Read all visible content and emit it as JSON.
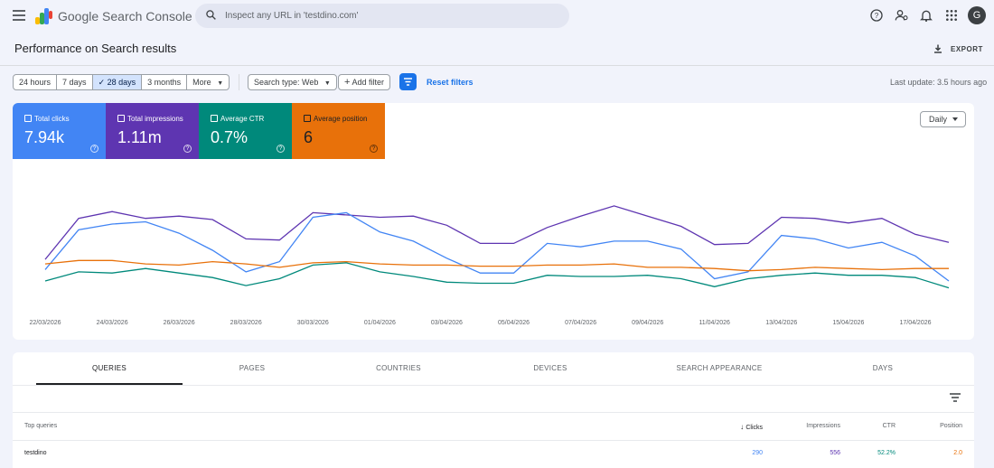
{
  "app": {
    "title": "Google Search Console"
  },
  "search": {
    "placeholder": "Inspect any URL in 'testdino.com'"
  },
  "user": {
    "avatar_letter": "G"
  },
  "page": {
    "title": "Performance on Search results",
    "export_label": "EXPORT"
  },
  "filters": {
    "ranges": [
      "24 hours",
      "7 days",
      "28 days",
      "3 months"
    ],
    "active_range": "28 days",
    "more_label": "More",
    "search_type": "Search type: Web",
    "add_filter": "Add filter",
    "reset": "Reset filters",
    "last_update": "Last update: 3.5 hours ago"
  },
  "metrics": [
    {
      "label": "Total clicks",
      "value": "7.94k",
      "color": "#4285f4"
    },
    {
      "label": "Total impressions",
      "value": "1.11m",
      "color": "#5e35b1"
    },
    {
      "label": "Average CTR",
      "value": "0.7%",
      "color": "#00897b"
    },
    {
      "label": "Average position",
      "value": "6",
      "color": "#e8710a"
    }
  ],
  "granularity": "Daily",
  "chart_data": {
    "type": "line",
    "x_tick_labels": [
      "22/03/2026",
      "24/03/2026",
      "26/03/2026",
      "28/03/2026",
      "30/03/2026",
      "01/04/2026",
      "03/04/2026",
      "05/04/2026",
      "07/04/2026",
      "09/04/2026",
      "11/04/2026",
      "13/04/2026",
      "15/04/2026",
      "17/04/2026"
    ],
    "days": 28,
    "grid": false,
    "series": [
      {
        "name": "Total impressions",
        "color": "#5e35b1",
        "values": [
          0.42,
          0.78,
          0.84,
          0.78,
          0.8,
          0.77,
          0.6,
          0.59,
          0.83,
          0.81,
          0.79,
          0.8,
          0.72,
          0.56,
          0.56,
          0.7,
          0.8,
          0.89,
          0.8,
          0.71,
          0.55,
          0.56,
          0.79,
          0.78,
          0.74,
          0.78,
          0.64,
          0.57
        ]
      },
      {
        "name": "Total clicks",
        "color": "#4285f4",
        "values": [
          0.33,
          0.68,
          0.73,
          0.75,
          0.65,
          0.5,
          0.31,
          0.4,
          0.79,
          0.83,
          0.66,
          0.58,
          0.43,
          0.3,
          0.3,
          0.56,
          0.53,
          0.58,
          0.58,
          0.51,
          0.25,
          0.31,
          0.63,
          0.6,
          0.52,
          0.57,
          0.45,
          0.23
        ]
      },
      {
        "name": "Average position",
        "color": "#e8710a",
        "values": [
          0.38,
          0.41,
          0.41,
          0.38,
          0.37,
          0.4,
          0.38,
          0.35,
          0.39,
          0.4,
          0.38,
          0.37,
          0.37,
          0.36,
          0.36,
          0.37,
          0.37,
          0.38,
          0.35,
          0.35,
          0.34,
          0.32,
          0.33,
          0.35,
          0.34,
          0.33,
          0.34,
          0.34
        ]
      },
      {
        "name": "Average CTR",
        "color": "#00897b",
        "values": [
          0.23,
          0.31,
          0.3,
          0.34,
          0.3,
          0.26,
          0.19,
          0.25,
          0.37,
          0.39,
          0.31,
          0.27,
          0.22,
          0.21,
          0.21,
          0.28,
          0.27,
          0.27,
          0.28,
          0.25,
          0.18,
          0.25,
          0.28,
          0.3,
          0.28,
          0.28,
          0.26,
          0.17
        ]
      }
    ]
  },
  "tabs": [
    "QUERIES",
    "PAGES",
    "COUNTRIES",
    "DEVICES",
    "SEARCH APPEARANCE",
    "DAYS"
  ],
  "table": {
    "headers": {
      "query": "Top queries",
      "clicks": "Clicks",
      "impressions": "Impressions",
      "ctr": "CTR",
      "position": "Position"
    },
    "rows": [
      {
        "query": "testdino",
        "clicks": "290",
        "impressions": "556",
        "ctr": "52.2%",
        "position": "2.0"
      }
    ]
  }
}
